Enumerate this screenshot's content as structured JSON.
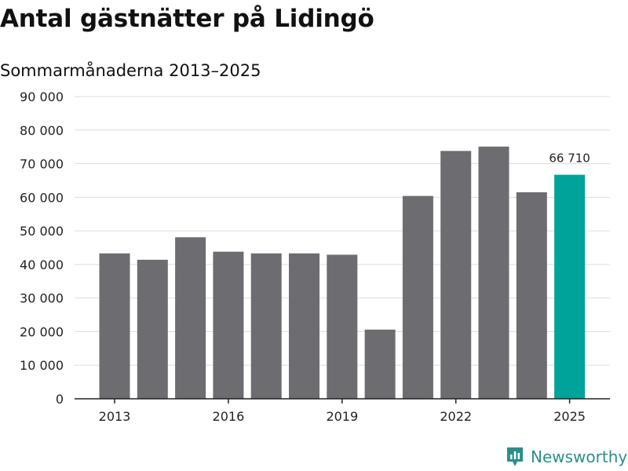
{
  "chart_data": {
    "type": "bar",
    "title": "Antal gästnätter på Lidingö",
    "subtitle": "Sommarmånaderna 2013–2025",
    "categories": [
      "2013",
      "2014",
      "2015",
      "2016",
      "2017",
      "2018",
      "2019",
      "2020",
      "2021",
      "2022",
      "2023",
      "2024",
      "2025"
    ],
    "x_tick_labels": [
      "2013",
      "2016",
      "2019",
      "2022",
      "2025"
    ],
    "values": [
      43300,
      41400,
      48100,
      43800,
      43300,
      43300,
      42900,
      20600,
      60400,
      73800,
      75100,
      61500,
      66710
    ],
    "ylim": [
      0,
      90000
    ],
    "y_ticks": [
      0,
      10000,
      20000,
      30000,
      40000,
      50000,
      60000,
      70000,
      80000,
      90000
    ],
    "y_tick_labels": [
      "0",
      "10 000",
      "20 000",
      "30 000",
      "40 000",
      "50 000",
      "60 000",
      "70 000",
      "80 000",
      "90 000"
    ],
    "annotations": [
      {
        "category": "2025",
        "label": "66 710"
      }
    ],
    "highlight_category": "2025",
    "colors": {
      "bar": "#6d6c70",
      "highlight": "#00a39a",
      "grid": "#dddddd",
      "axis": "#222222"
    },
    "xlabel": "",
    "ylabel": "",
    "grid": true
  },
  "brand": {
    "name": "Newsworthy",
    "icon": "newsworthy-logo-icon",
    "color": "#2a8f8a"
  }
}
